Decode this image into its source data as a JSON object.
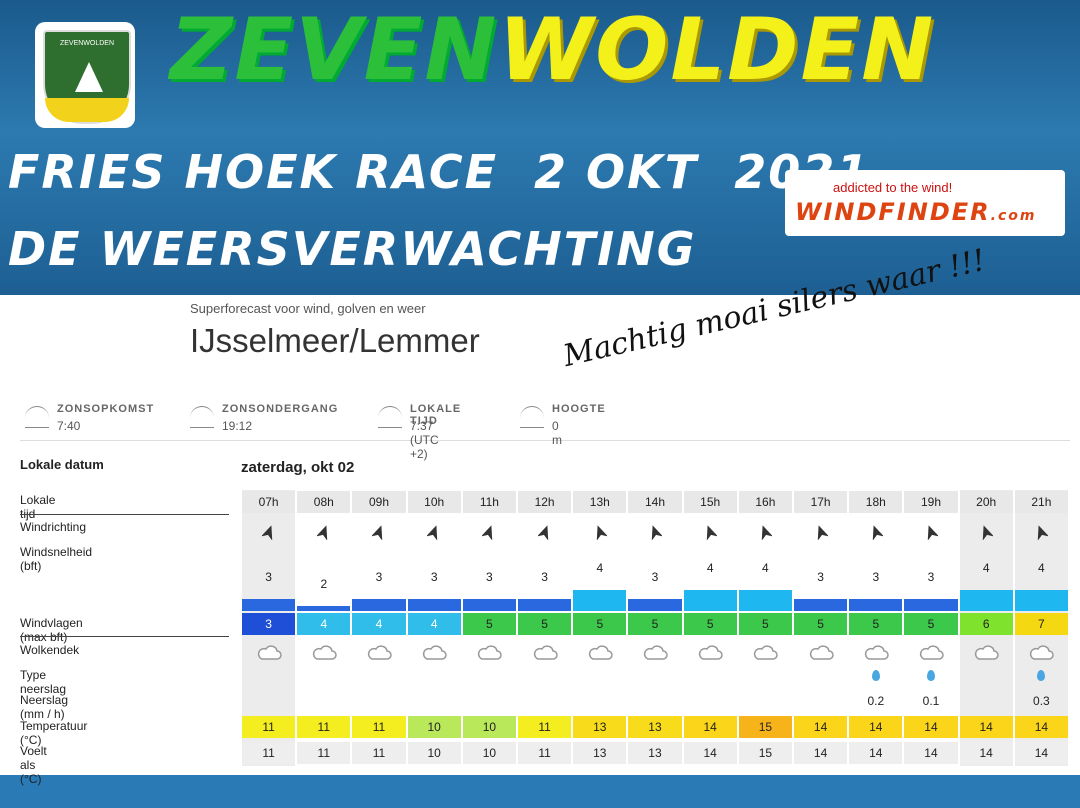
{
  "header": {
    "badge": "ZEVENWOLDEN",
    "title_left": "ZEVEN",
    "title_right": "WOLDEN",
    "line1": "FRIES HOEK RACE  2 OKT  2021",
    "line2": "DE WEERSVERWACHTING",
    "ad_tagline": "addicted to the wind!",
    "ad_brand": "WINDFINDER",
    "ad_suffix": ".com"
  },
  "forecast": {
    "subtitle": "Superforecast voor wind, golven en weer",
    "location": "IJsselmeer/Lemmer",
    "handwritten": "Machtig moai silers waar !!!",
    "info": [
      {
        "label": "ZONSOPKOMST",
        "value": "7:40"
      },
      {
        "label": "ZONSONDERGANG",
        "value": "19:12"
      },
      {
        "label": "LOKALE TIJD",
        "value": "7:37 (UTC +2)"
      },
      {
        "label": "HOOGTE",
        "value": "0 m"
      }
    ],
    "date_label": "Lokale datum",
    "date": "zaterdag, okt 02",
    "row_labels": {
      "time": "Lokale tijd",
      "direction": "Windrichting",
      "speed": "Windsnelheid  (bft)",
      "gusts": "Windvlagen  (max bft)",
      "clouds": "Wolkendek",
      "precip_type": "Type neerslag",
      "precip": "Neerslag  (mm / h)",
      "temperature": "Temperatuur  (°C)",
      "feels": "Voelt als  (°C)"
    },
    "hours": [
      "07h",
      "08h",
      "09h",
      "10h",
      "11h",
      "12h",
      "13h",
      "14h",
      "15h",
      "16h",
      "17h",
      "18h",
      "19h",
      "20h",
      "21h"
    ],
    "wind": [
      3,
      2,
      3,
      3,
      3,
      3,
      4,
      3,
      4,
      4,
      3,
      3,
      3,
      4,
      4
    ],
    "gusts": [
      3,
      4,
      4,
      4,
      5,
      5,
      5,
      5,
      5,
      5,
      5,
      5,
      5,
      6,
      7
    ],
    "precipitation": [
      null,
      null,
      null,
      null,
      null,
      null,
      null,
      null,
      null,
      null,
      null,
      0.2,
      0.1,
      null,
      0.3
    ],
    "temperature": [
      11,
      11,
      11,
      10,
      10,
      11,
      13,
      13,
      14,
      15,
      14,
      14,
      14,
      14,
      14
    ],
    "feels_like": [
      11,
      11,
      11,
      10,
      10,
      11,
      13,
      13,
      14,
      15,
      14,
      14,
      14,
      14,
      14
    ]
  }
}
